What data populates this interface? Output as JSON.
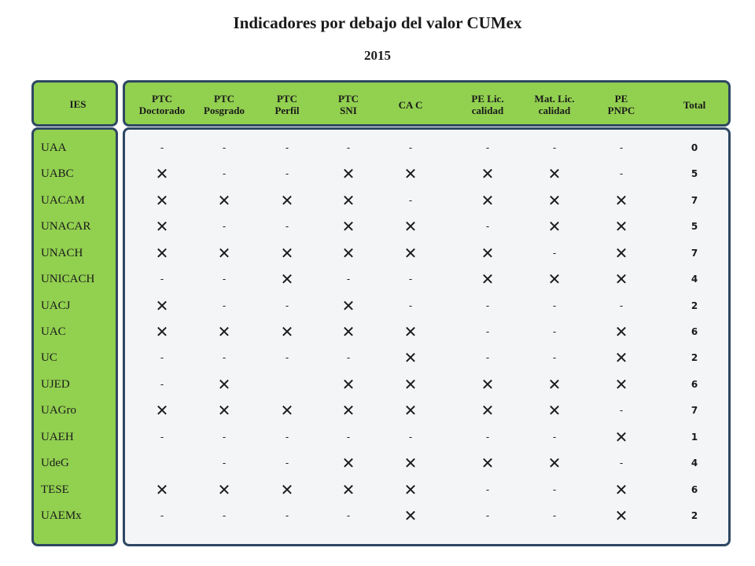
{
  "title": "Indicadores por debajo del valor CUMex",
  "year": "2015",
  "colors": {
    "label_fill": "#92d050",
    "panel_border": "#2e4763",
    "grid_fill": "#f3f5f7"
  },
  "symbols": {
    "below": "✕",
    "none": "-"
  },
  "ies_header": "IES",
  "columns": [
    "PTC\nDoctorado",
    "PTC\nPosgrado",
    "PTC\nPerfil",
    "PTC\nSNI",
    "CA C",
    "PE Lic.\ncalidad",
    "Mat. Lic.\ncalidad",
    "PE\nPNPC",
    "Total"
  ],
  "rows": [
    {
      "ies": "UAA",
      "marks": [
        "-",
        "-",
        "-",
        "-",
        "-",
        "-",
        "-",
        "-"
      ],
      "total": "0"
    },
    {
      "ies": "UABC",
      "marks": [
        "x",
        "-",
        "-",
        "x",
        "x",
        "x",
        "x",
        "-"
      ],
      "total": "5"
    },
    {
      "ies": "UACAM",
      "marks": [
        "x",
        "x",
        "x",
        "x",
        "-",
        "x",
        "x",
        "x"
      ],
      "total": "7"
    },
    {
      "ies": "UNACAR",
      "marks": [
        "x",
        "-",
        "-",
        "x",
        "x",
        "-",
        "x",
        "x"
      ],
      "total": "5"
    },
    {
      "ies": "UNACH",
      "marks": [
        "x",
        "x",
        "x",
        "x",
        "x",
        "x",
        "-",
        "x"
      ],
      "total": "7"
    },
    {
      "ies": "UNICACH",
      "marks": [
        "-",
        "-",
        "x",
        "-",
        "-",
        "x",
        "x",
        "x"
      ],
      "total": "4"
    },
    {
      "ies": "UACJ",
      "marks": [
        "x",
        "-",
        "-",
        "x",
        "-",
        "-",
        "-",
        "-"
      ],
      "total": "2"
    },
    {
      "ies": "UAC",
      "marks": [
        "x",
        "x",
        "x",
        "x",
        "x",
        "-",
        "-",
        "x"
      ],
      "total": "6"
    },
    {
      "ies": "UC",
      "marks": [
        "-",
        "-",
        "-",
        "-",
        "x",
        "-",
        "-",
        "x"
      ],
      "total": "2"
    },
    {
      "ies": "UJED",
      "marks": [
        "-",
        "x",
        "",
        "x",
        "x",
        "x",
        "x",
        "x"
      ],
      "total": "6"
    },
    {
      "ies": "UAGro",
      "marks": [
        "x",
        "x",
        "x",
        "x",
        "x",
        "x",
        "x",
        "-"
      ],
      "total": "7"
    },
    {
      "ies": "UAEH",
      "marks": [
        "-",
        "-",
        "-",
        "-",
        "-",
        "-",
        "-",
        "x"
      ],
      "total": "1"
    },
    {
      "ies": "UdeG",
      "marks": [
        "",
        "-",
        "-",
        "x",
        "x",
        "x",
        "x",
        "-"
      ],
      "total": "4"
    },
    {
      "ies": "TESE",
      "marks": [
        "x",
        "x",
        "x",
        "x",
        "x",
        "-",
        "-",
        "x"
      ],
      "total": "6"
    },
    {
      "ies": "UAEMx",
      "marks": [
        "-",
        "-",
        "-",
        "-",
        "x",
        "-",
        "-",
        "x"
      ],
      "total": "2"
    }
  ]
}
